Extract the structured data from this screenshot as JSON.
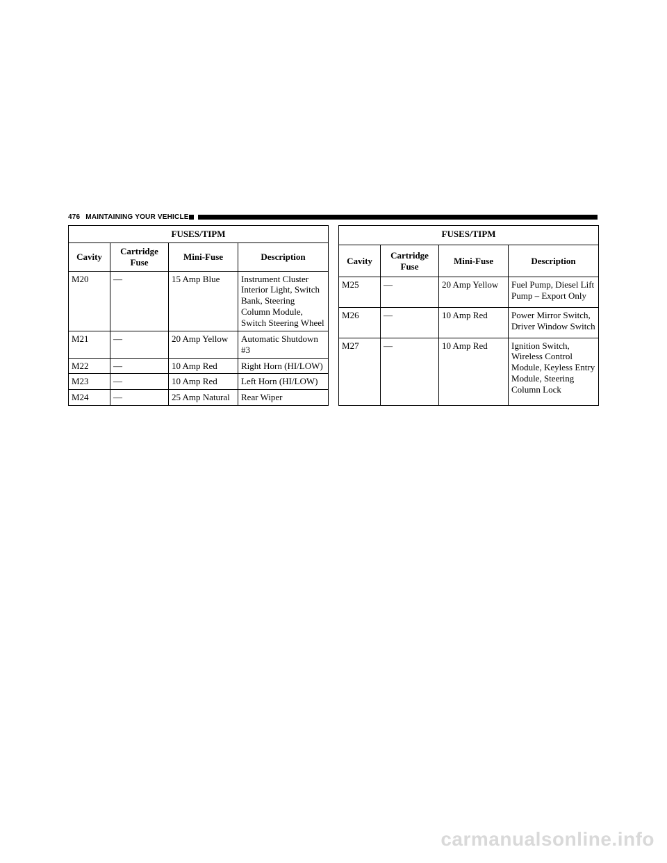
{
  "header": {
    "page_number": "476",
    "section": "MAINTAINING YOUR VEHICLE"
  },
  "watermark": "carmanualsonline.info",
  "table_meta": {
    "title": "FUSES/TIPM",
    "columns": [
      "Cavity",
      "Cartridge Fuse",
      "Mini-Fuse",
      "Description"
    ]
  },
  "left_table": {
    "rows": [
      {
        "cavity": "M20",
        "cartridge": "—",
        "mini": "15 Amp Blue",
        "desc": "Instrument Cluster Interior Light, Switch Bank, Steering Column Module, Switch Steering Wheel"
      },
      {
        "cavity": "M21",
        "cartridge": "—",
        "mini": "20 Amp Yellow",
        "desc": "Automatic Shutdown #3"
      },
      {
        "cavity": "M22",
        "cartridge": "—",
        "mini": "10 Amp Red",
        "desc": "Right Horn (HI/LOW)"
      },
      {
        "cavity": "M23",
        "cartridge": "—",
        "mini": "10 Amp Red",
        "desc": "Left Horn (HI/LOW)"
      },
      {
        "cavity": "M24",
        "cartridge": "—",
        "mini": "25 Amp Natural",
        "desc": "Rear Wiper"
      }
    ]
  },
  "right_table": {
    "rows": [
      {
        "cavity": "M25",
        "cartridge": "—",
        "mini": "20 Amp Yellow",
        "desc": "Fuel Pump, Diesel Lift Pump – Export Only"
      },
      {
        "cavity": "M26",
        "cartridge": "—",
        "mini": "10 Amp Red",
        "desc": "Power Mirror Switch, Driver Window Switch"
      },
      {
        "cavity": "M27",
        "cartridge": "—",
        "mini": "10 Amp Red",
        "desc": "Ignition Switch, Wireless Control Module, Keyless Entry Module, Steering Column Lock"
      }
    ]
  }
}
